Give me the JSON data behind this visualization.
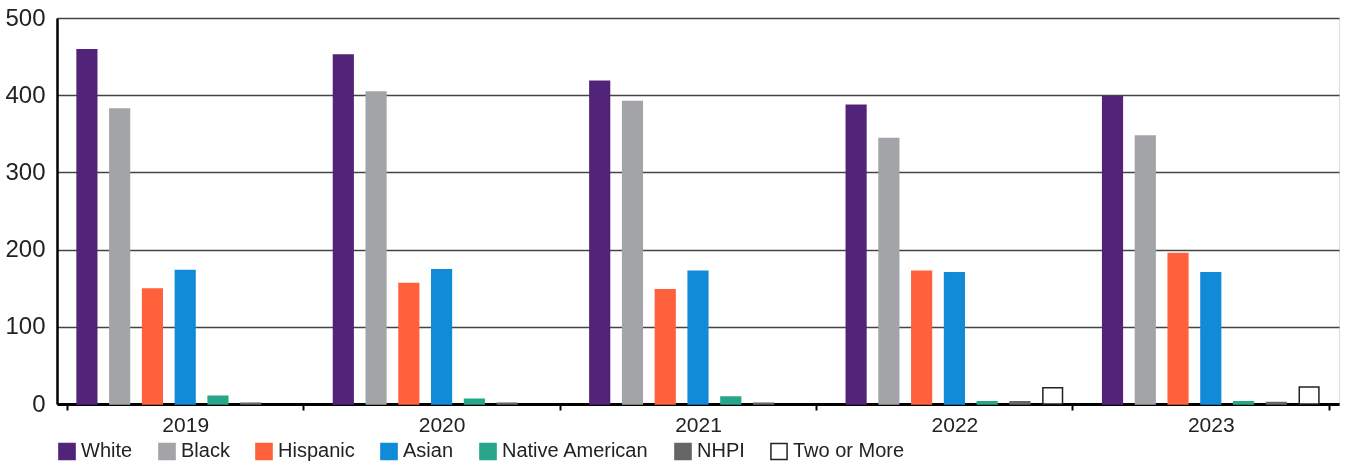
{
  "chart_data": {
    "type": "bar",
    "categories": [
      "2019",
      "2020",
      "2021",
      "2022",
      "2023"
    ],
    "series": [
      {
        "name": "White",
        "color": "#522479",
        "values": [
          459,
          452,
          418,
          387,
          398
        ]
      },
      {
        "name": "Black",
        "color": "#a3a4a8",
        "values": [
          382,
          404,
          392,
          344,
          347
        ]
      },
      {
        "name": "Hispanic",
        "color": "#ff613c",
        "values": [
          149,
          156,
          148,
          172,
          195
        ]
      },
      {
        "name": "Asian",
        "color": "#118ad8",
        "values": [
          173,
          174,
          172,
          170,
          170
        ]
      },
      {
        "name": "Native American",
        "color": "#27a68a",
        "values": [
          10,
          6,
          9,
          3,
          3
        ]
      },
      {
        "name": "NHPI",
        "color": "#666666",
        "values": [
          1,
          1,
          1,
          3,
          2
        ]
      },
      {
        "name": "Two or More",
        "color": "#ffffff",
        "values": [
          null,
          null,
          null,
          21,
          22
        ]
      }
    ],
    "ylim": [
      0,
      500
    ],
    "yticks": [
      0,
      100,
      200,
      300,
      400,
      500
    ],
    "grid": "y",
    "legend": "bottom"
  }
}
